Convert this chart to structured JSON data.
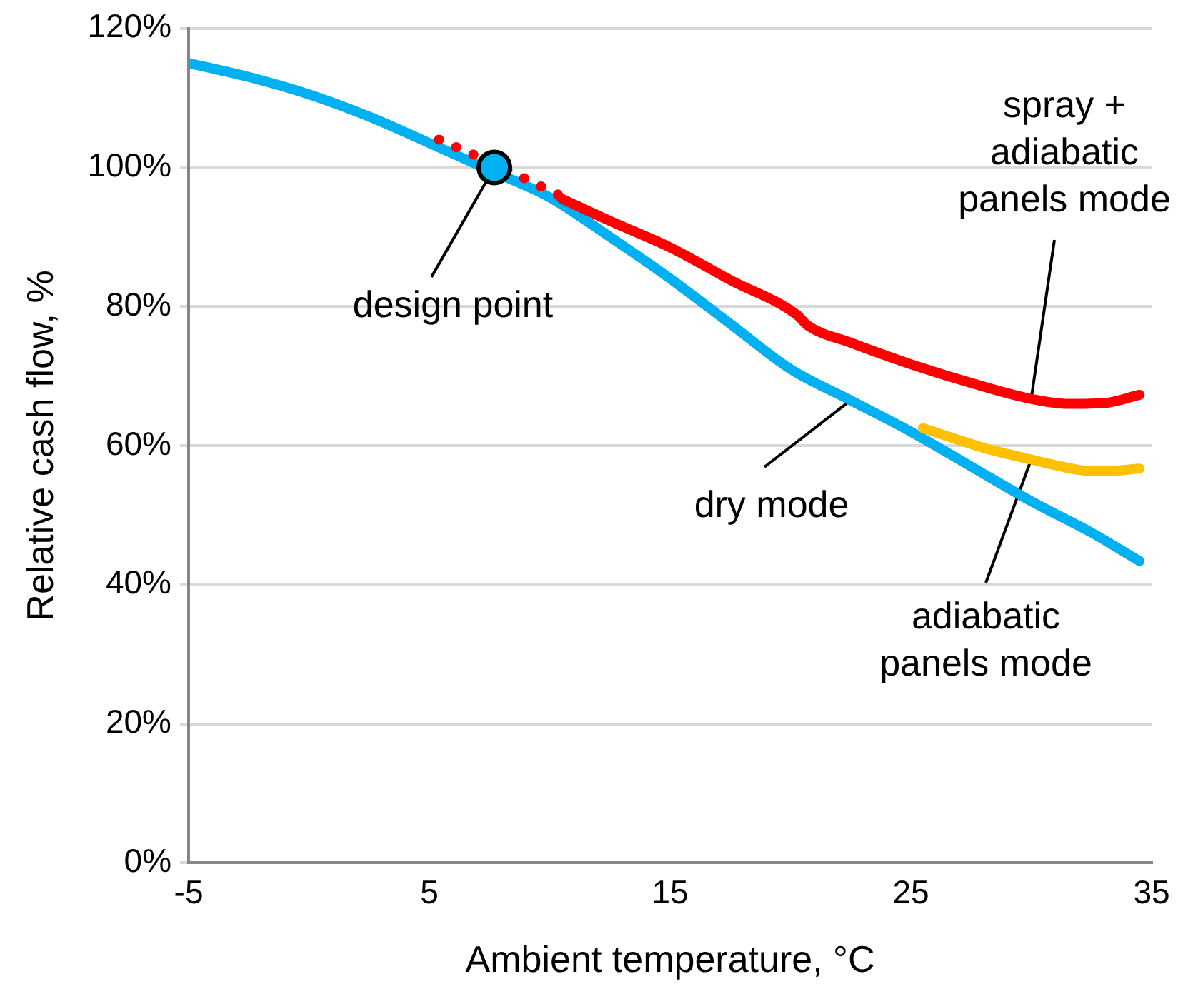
{
  "chart_data": {
    "type": "line",
    "xlabel": "Ambient temperature, °C",
    "ylabel": "Relative cash flow, %",
    "xlim": [
      -5,
      35
    ],
    "xticks": [
      -5,
      5,
      15,
      25,
      35
    ],
    "ylim": [
      0,
      120
    ],
    "yticks": [
      {
        "value": 0,
        "label": "0%"
      },
      {
        "value": 20,
        "label": "20%"
      },
      {
        "value": 40,
        "label": "40%"
      },
      {
        "value": 60,
        "label": "60%"
      },
      {
        "value": 80,
        "label": "80%"
      },
      {
        "value": 100,
        "label": "100%"
      },
      {
        "value": 120,
        "label": "120%"
      }
    ],
    "grid": "y",
    "marker": "none",
    "annotations": [
      {
        "text": "dry mode",
        "x": 22.5,
        "y": 66.5
      },
      {
        "text": "spray + adiabatic panels mode",
        "x": 30,
        "y": 66.7
      },
      {
        "text": "adiabatic panels mode",
        "x": 30,
        "y": 58
      },
      {
        "text": "design point",
        "x": 7.7,
        "y": 100
      }
    ],
    "series": [
      {
        "color": "#00b0f0",
        "line_style": "solid",
        "x": [
          -5,
          -2.5,
          0,
          2.5,
          5,
          7.5,
          10,
          12.5,
          15,
          17.5,
          20,
          22.5,
          25,
          27.5,
          30,
          32.5,
          34.5
        ],
        "values": [
          115,
          113,
          110.5,
          107.3,
          103.5,
          99.6,
          95.7,
          90,
          84,
          77.5,
          71,
          66.5,
          62,
          57,
          52,
          47.5,
          43.4
        ]
      },
      {
        "color": "#ff0000",
        "line_style": "dotted",
        "x": [
          5.4,
          7.7,
          10.4
        ],
        "values": [
          104,
          100.5,
          96
        ]
      },
      {
        "color": "#ff0000",
        "line_style": "solid",
        "x": [
          10.5,
          12.5,
          15,
          17.5,
          20.3,
          20.7,
          22.5,
          25,
          27.5,
          30,
          31.5,
          33,
          34.5
        ],
        "values": [
          95.5,
          92.3,
          88.5,
          83.8,
          78.7,
          77.3,
          74.8,
          71.7,
          69,
          66.7,
          66,
          66.1,
          67.3
        ]
      },
      {
        "color": "#ffc000",
        "line_style": "solid",
        "x": [
          25.5,
          28,
          30,
          32,
          33,
          34.5
        ],
        "values": [
          62.5,
          59.7,
          58,
          56.5,
          56.3,
          56.7
        ]
      },
      {
        "type": "scatter",
        "marker": "circle",
        "color": "#00b0f0",
        "x": [
          7.7
        ],
        "values": [
          100
        ]
      }
    ]
  }
}
